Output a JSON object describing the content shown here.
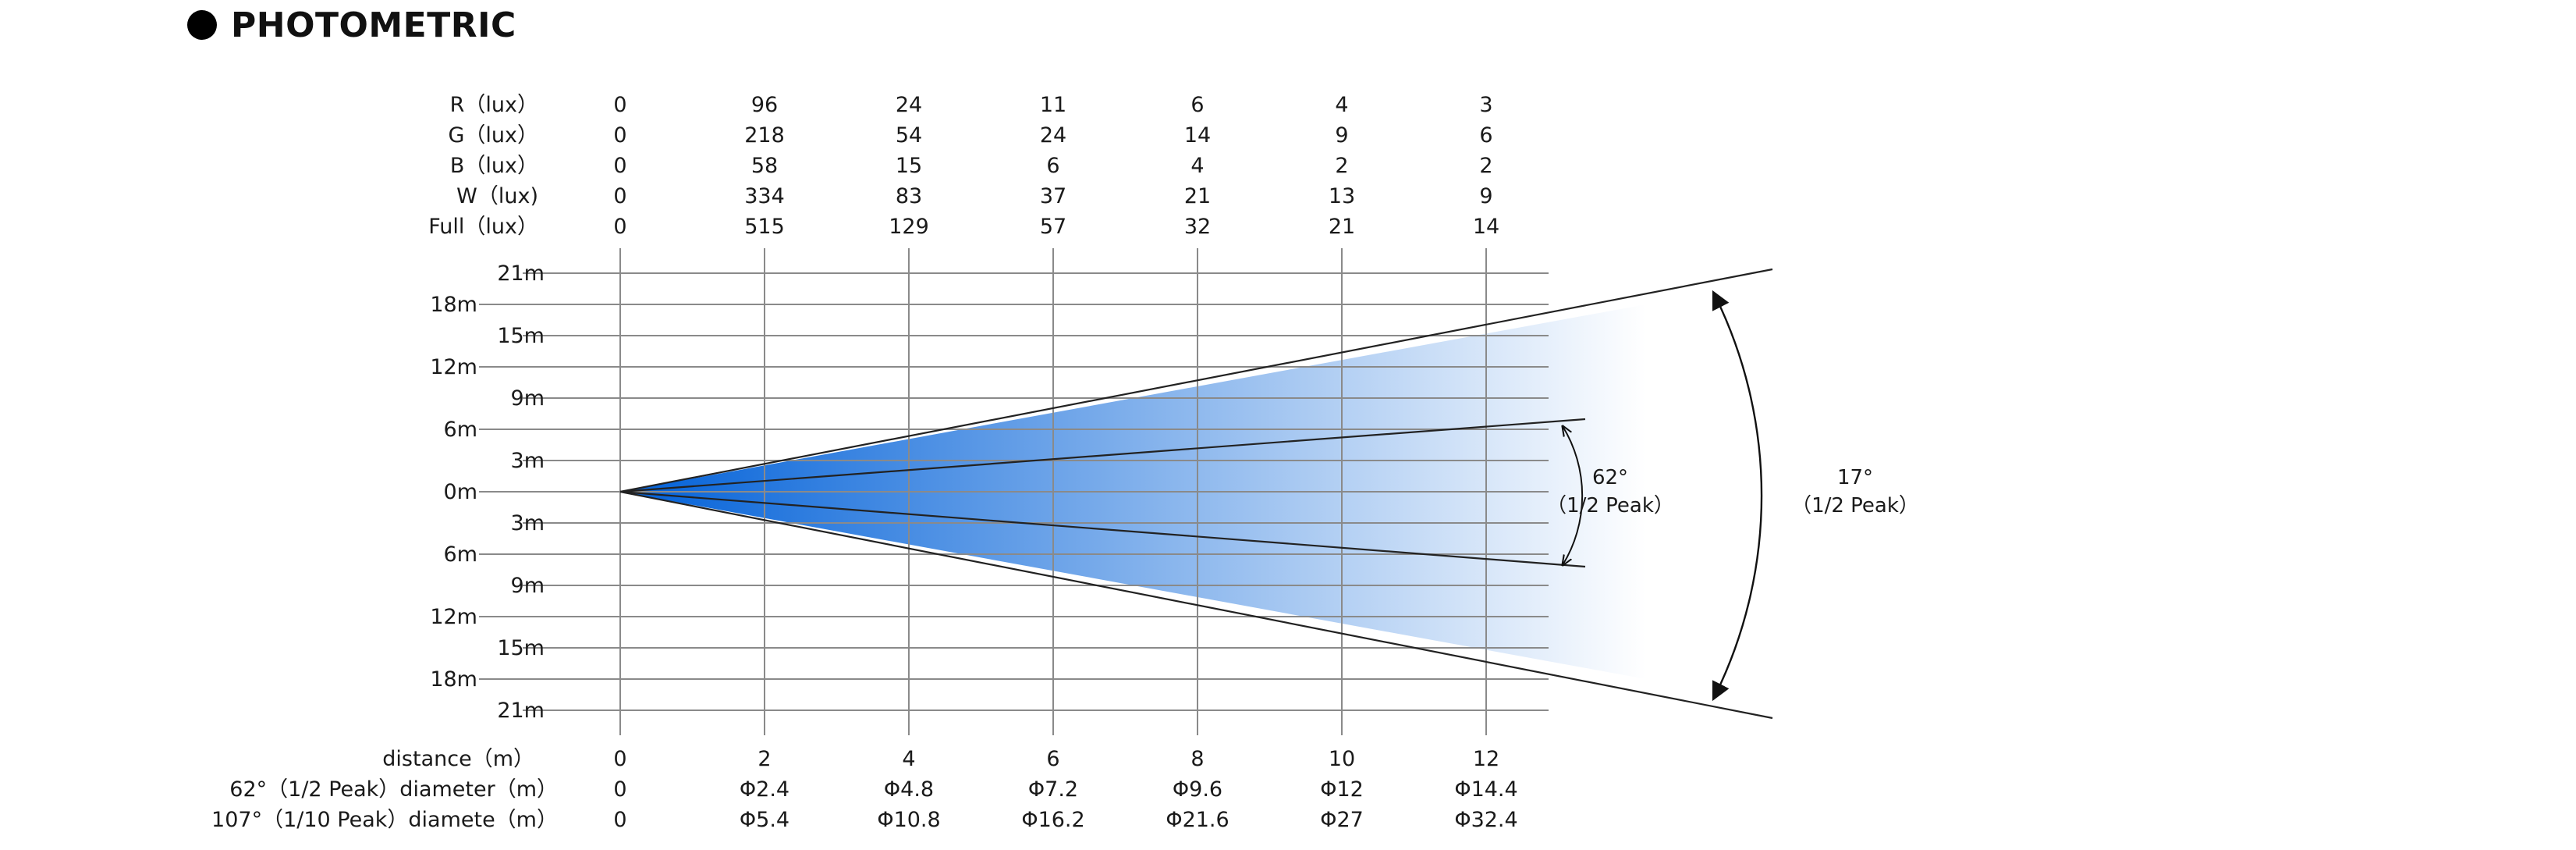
{
  "title": "PHOTOMETRIC",
  "distances": [
    "0",
    "2",
    "4",
    "6",
    "8",
    "10",
    "12"
  ],
  "lux_rows": [
    {
      "label": "R（lux）",
      "values": [
        "0",
        "96",
        "24",
        "11",
        "6",
        "4",
        "3"
      ]
    },
    {
      "label": "G（lux）",
      "values": [
        "0",
        "218",
        "54",
        "24",
        "14",
        "9",
        "6"
      ]
    },
    {
      "label": "B（lux）",
      "values": [
        "0",
        "58",
        "15",
        "6",
        "4",
        "2",
        "2"
      ]
    },
    {
      "label": "W（lux)",
      "values": [
        "0",
        "334",
        "83",
        "37",
        "21",
        "13",
        "9"
      ]
    },
    {
      "label": "Full（lux）",
      "values": [
        "0",
        "515",
        "129",
        "57",
        "32",
        "21",
        "14"
      ]
    }
  ],
  "left_labels": [
    "18m",
    "12m",
    "6m",
    "0m",
    "6m",
    "12m",
    "18m"
  ],
  "right_labels": [
    "21m",
    "15m",
    "9m",
    "3m",
    "3m",
    "9m",
    "15m",
    "21m"
  ],
  "bottom_rows": [
    {
      "label": "distance（m）",
      "values": [
        "0",
        "2",
        "4",
        "6",
        "8",
        "10",
        "12"
      ]
    },
    {
      "label": "62°（1/2 Peak）diameter（m）",
      "values": [
        "0",
        "Φ2.4",
        "Φ4.8",
        "Φ7.2",
        "Φ9.6",
        "Φ12",
        "Φ14.4"
      ]
    },
    {
      "label": "107°（1/10 Peak）diamete（m）",
      "values": [
        "0",
        "Φ5.4",
        "Φ10.8",
        "Φ16.2",
        "Φ21.6",
        "Φ27",
        "Φ32.4"
      ]
    }
  ],
  "inner_angle": {
    "value": "62°",
    "label": "（1/2 Peak）"
  },
  "outer_angle": {
    "value": "17°",
    "label": "（1/2 Peak）"
  },
  "colors": {
    "beam_dark": "#0060d8",
    "beam_light": "#ffffff",
    "grid": "#8a8a8a",
    "line": "#222222"
  }
}
